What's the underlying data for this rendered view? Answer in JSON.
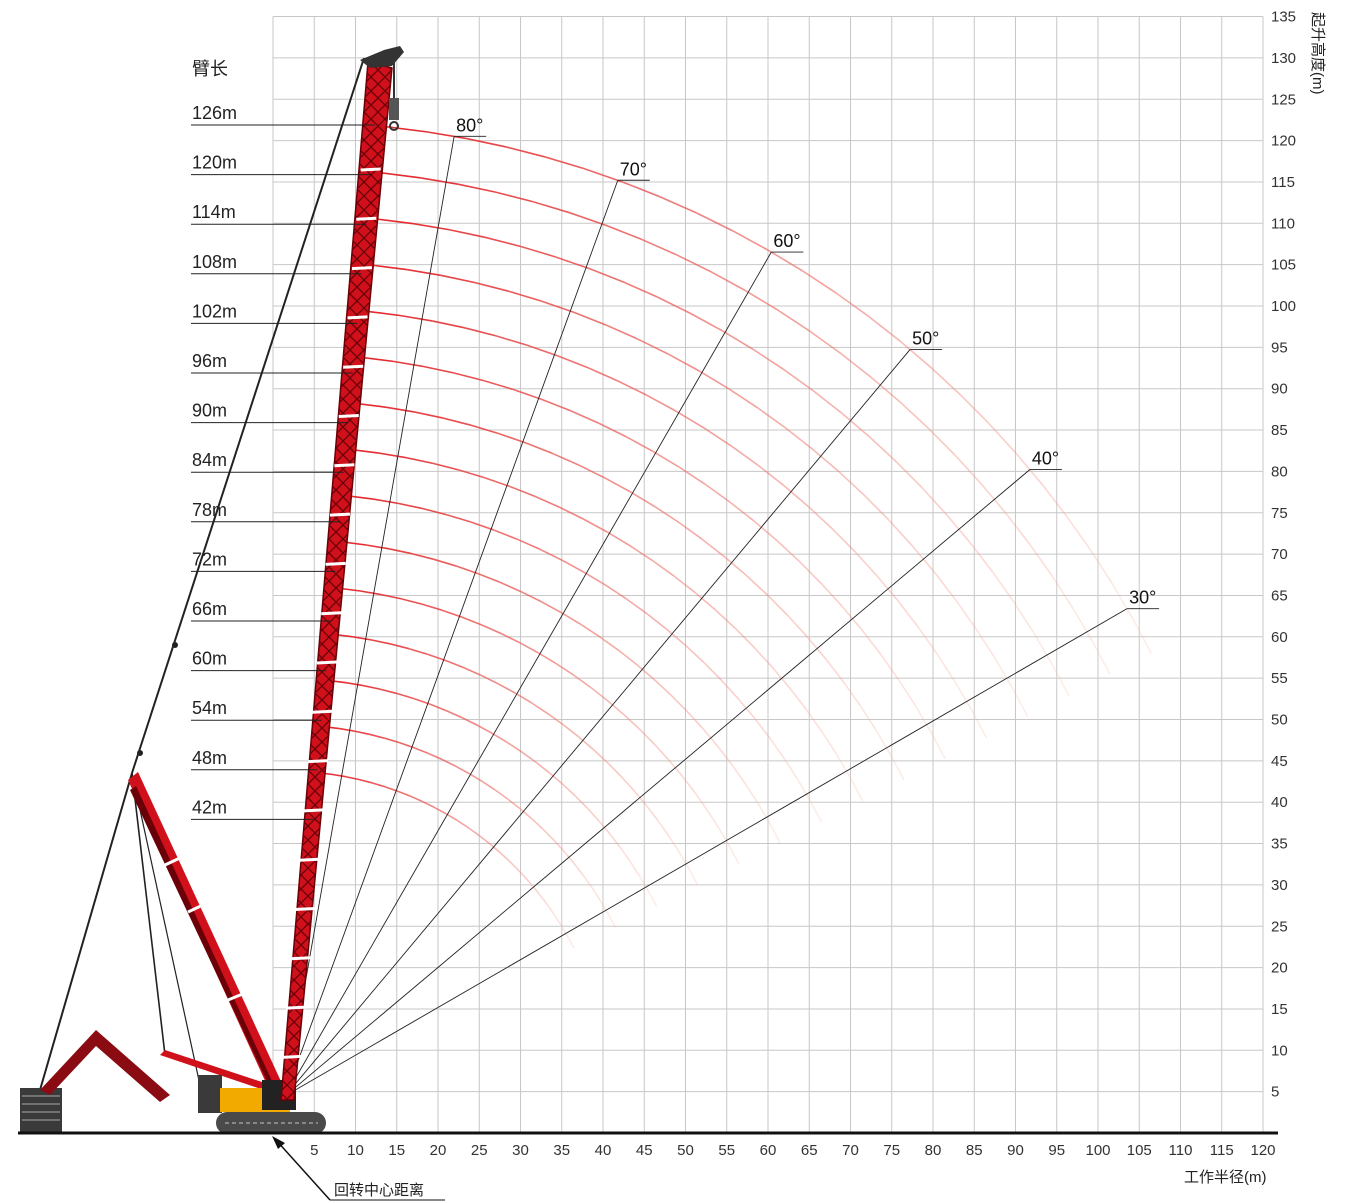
{
  "chart_data": {
    "type": "line",
    "title": "",
    "boom_length_header": "臂长",
    "xlabel": "工作半径(m)",
    "ylabel": "起升高度(m)",
    "slewing_center_label": "回转中心距离",
    "xlim": [
      0,
      120
    ],
    "ylim": [
      0,
      135
    ],
    "x_ticks": [
      5,
      10,
      15,
      20,
      25,
      30,
      35,
      40,
      45,
      50,
      55,
      60,
      65,
      70,
      75,
      80,
      85,
      90,
      95,
      100,
      105,
      110,
      115,
      120
    ],
    "y_ticks": [
      5,
      10,
      15,
      20,
      25,
      30,
      35,
      40,
      45,
      50,
      55,
      60,
      65,
      70,
      75,
      80,
      85,
      90,
      95,
      100,
      105,
      110,
      115,
      120,
      125,
      130,
      135
    ],
    "grid": true,
    "boom_lengths": [
      {
        "label": "126m",
        "value": 126
      },
      {
        "label": "120m",
        "value": 120
      },
      {
        "label": "114m",
        "value": 114
      },
      {
        "label": "108m",
        "value": 108
      },
      {
        "label": "102m",
        "value": 102
      },
      {
        "label": "96m",
        "value": 96
      },
      {
        "label": "90m",
        "value": 90
      },
      {
        "label": "84m",
        "value": 84
      },
      {
        "label": "78m",
        "value": 78
      },
      {
        "label": "72m",
        "value": 72
      },
      {
        "label": "66m",
        "value": 66
      },
      {
        "label": "60m",
        "value": 60
      },
      {
        "label": "54m",
        "value": 54
      },
      {
        "label": "48m",
        "value": 48
      },
      {
        "label": "42m",
        "value": 42
      }
    ],
    "boom_angles": [
      {
        "label": "80°",
        "value": 80
      },
      {
        "label": "70°",
        "value": 70
      },
      {
        "label": "60°",
        "value": 60
      },
      {
        "label": "50°",
        "value": 50
      },
      {
        "label": "40°",
        "value": 40
      },
      {
        "label": "30°",
        "value": 30
      }
    ],
    "colors": {
      "arc_start": "#e11d24",
      "arc_end": "#f7b9a4",
      "boom": "#d0101a",
      "crawler": "#555555",
      "counterweight_accent": "#f2a900"
    }
  }
}
